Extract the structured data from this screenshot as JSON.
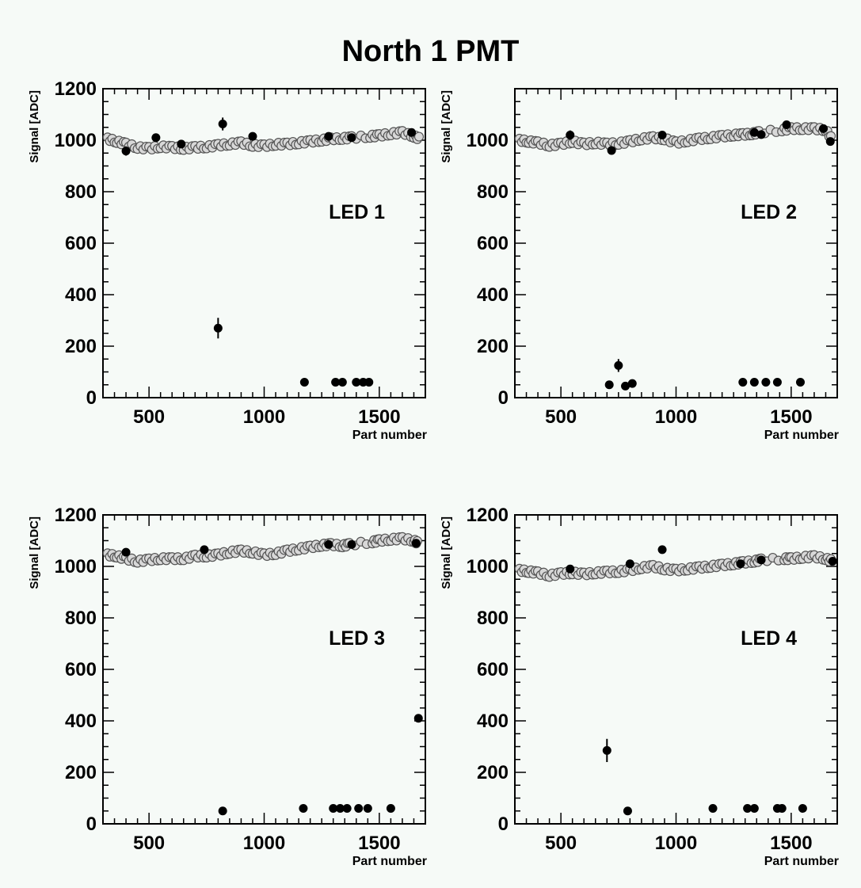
{
  "figure_title": "North 1 PMT",
  "chart_data": [
    {
      "type": "scatter",
      "title": "",
      "xlabel": "Part number",
      "ylabel": "Signal [ADC]",
      "xlim": [
        300,
        1700
      ],
      "ylim": [
        0,
        1200
      ],
      "xticks": [
        500,
        1000,
        1500
      ],
      "yticks": [
        0,
        200,
        400,
        600,
        800,
        1000,
        1200
      ],
      "annotation": "LED 1",
      "grid": false,
      "band": [
        [
          320,
          1005
        ],
        [
          360,
          995
        ],
        [
          400,
          985
        ],
        [
          450,
          972
        ],
        [
          500,
          968
        ],
        [
          550,
          975
        ],
        [
          600,
          972
        ],
        [
          650,
          968
        ],
        [
          700,
          972
        ],
        [
          750,
          974
        ],
        [
          800,
          980
        ],
        [
          850,
          985
        ],
        [
          900,
          990
        ],
        [
          950,
          980
        ],
        [
          1000,
          978
        ],
        [
          1050,
          984
        ],
        [
          1100,
          985
        ],
        [
          1150,
          990
        ],
        [
          1200,
          995
        ],
        [
          1250,
          1000
        ],
        [
          1290,
          1005
        ],
        [
          1340,
          1007
        ],
        [
          1380,
          1010
        ],
        [
          1460,
          1015
        ],
        [
          1500,
          1018
        ],
        [
          1550,
          1025
        ],
        [
          1600,
          1030
        ],
        [
          1650,
          1015
        ],
        [
          1680,
          1005
        ]
      ],
      "points": [
        [
          400,
          958,
          18
        ],
        [
          530,
          1010,
          0
        ],
        [
          640,
          985,
          0
        ],
        [
          820,
          1063,
          25
        ],
        [
          950,
          1015,
          0
        ],
        [
          1280,
          1015,
          0
        ],
        [
          1380,
          1010,
          0
        ],
        [
          1640,
          1030,
          0
        ],
        [
          800,
          270,
          40
        ],
        [
          1175,
          60,
          0
        ],
        [
          1310,
          60,
          0
        ],
        [
          1340,
          60,
          0
        ],
        [
          1400,
          60,
          0
        ],
        [
          1430,
          60,
          0
        ],
        [
          1455,
          60,
          0
        ]
      ]
    },
    {
      "type": "scatter",
      "title": "",
      "xlabel": "Part number",
      "ylabel": "Signal [ADC]",
      "xlim": [
        300,
        1700
      ],
      "ylim": [
        0,
        1200
      ],
      "xticks": [
        500,
        1000,
        1500
      ],
      "yticks": [
        0,
        200,
        400,
        600,
        800,
        1000
      ],
      "annotation": "LED 2",
      "grid": false,
      "band": [
        [
          320,
          1000
        ],
        [
          360,
          995
        ],
        [
          400,
          990
        ],
        [
          450,
          980
        ],
        [
          500,
          985
        ],
        [
          550,
          995
        ],
        [
          600,
          985
        ],
        [
          650,
          990
        ],
        [
          700,
          985
        ],
        [
          750,
          988
        ],
        [
          800,
          995
        ],
        [
          850,
          1005
        ],
        [
          900,
          1010
        ],
        [
          950,
          1005
        ],
        [
          1000,
          990
        ],
        [
          1050,
          998
        ],
        [
          1100,
          1005
        ],
        [
          1150,
          1010
        ],
        [
          1200,
          1015
        ],
        [
          1250,
          1020
        ],
        [
          1290,
          1022
        ],
        [
          1330,
          1025
        ],
        [
          1360,
          1030
        ],
        [
          1460,
          1040
        ],
        [
          1500,
          1045
        ],
        [
          1550,
          1045
        ],
        [
          1600,
          1045
        ],
        [
          1650,
          1040
        ],
        [
          1680,
          1000
        ]
      ],
      "points": [
        [
          540,
          1020,
          18
        ],
        [
          720,
          960,
          15
        ],
        [
          940,
          1020,
          0
        ],
        [
          1340,
          1030,
          0
        ],
        [
          1370,
          1022,
          0
        ],
        [
          1480,
          1060,
          0
        ],
        [
          1640,
          1045,
          0
        ],
        [
          1670,
          995,
          0
        ],
        [
          710,
          50,
          0
        ],
        [
          750,
          125,
          25
        ],
        [
          780,
          45,
          0
        ],
        [
          810,
          55,
          0
        ],
        [
          1290,
          60,
          0
        ],
        [
          1340,
          60,
          0
        ],
        [
          1390,
          60,
          0
        ],
        [
          1440,
          60,
          0
        ],
        [
          1540,
          60,
          0
        ]
      ]
    },
    {
      "type": "scatter",
      "title": "",
      "xlabel": "Part number",
      "ylabel": "Signal [ADC]",
      "xlim": [
        300,
        1700
      ],
      "ylim": [
        0,
        1200
      ],
      "xticks": [
        500,
        1000,
        1500
      ],
      "yticks": [
        0,
        200,
        400,
        600,
        800,
        1000,
        1200
      ],
      "annotation": "LED 3",
      "grid": false,
      "band": [
        [
          320,
          1045
        ],
        [
          360,
          1040
        ],
        [
          400,
          1030
        ],
        [
          450,
          1020
        ],
        [
          500,
          1025
        ],
        [
          550,
          1030
        ],
        [
          600,
          1030
        ],
        [
          650,
          1030
        ],
        [
          700,
          1040
        ],
        [
          750,
          1040
        ],
        [
          800,
          1045
        ],
        [
          850,
          1055
        ],
        [
          900,
          1060
        ],
        [
          950,
          1055
        ],
        [
          1000,
          1045
        ],
        [
          1050,
          1050
        ],
        [
          1100,
          1060
        ],
        [
          1150,
          1068
        ],
        [
          1200,
          1075
        ],
        [
          1250,
          1082
        ],
        [
          1290,
          1085
        ],
        [
          1340,
          1080
        ],
        [
          1370,
          1085
        ],
        [
          1470,
          1095
        ],
        [
          1500,
          1100
        ],
        [
          1550,
          1105
        ],
        [
          1600,
          1108
        ],
        [
          1650,
          1100
        ],
        [
          1670,
          1090
        ]
      ],
      "points": [
        [
          400,
          1055,
          15
        ],
        [
          740,
          1065,
          15
        ],
        [
          1280,
          1085,
          0
        ],
        [
          1380,
          1085,
          0
        ],
        [
          1660,
          1090,
          0
        ],
        [
          1670,
          410,
          0
        ],
        [
          820,
          50,
          0
        ],
        [
          1170,
          60,
          0
        ],
        [
          1300,
          60,
          0
        ],
        [
          1330,
          60,
          0
        ],
        [
          1360,
          60,
          0
        ],
        [
          1410,
          60,
          0
        ],
        [
          1450,
          60,
          0
        ],
        [
          1550,
          60,
          0
        ]
      ]
    },
    {
      "type": "scatter",
      "title": "",
      "xlabel": "Part number",
      "ylabel": "Signal [ADC]",
      "xlim": [
        300,
        1700
      ],
      "ylim": [
        0,
        1200
      ],
      "xticks": [
        500,
        1000,
        1500
      ],
      "yticks": [
        0,
        200,
        400,
        600,
        800,
        1000,
        1200
      ],
      "annotation": "LED 4",
      "grid": false,
      "band": [
        [
          320,
          985
        ],
        [
          360,
          980
        ],
        [
          400,
          975
        ],
        [
          450,
          965
        ],
        [
          500,
          972
        ],
        [
          550,
          975
        ],
        [
          600,
          970
        ],
        [
          650,
          975
        ],
        [
          700,
          978
        ],
        [
          750,
          980
        ],
        [
          800,
          985
        ],
        [
          850,
          995
        ],
        [
          900,
          1000
        ],
        [
          950,
          990
        ],
        [
          1000,
          985
        ],
        [
          1050,
          990
        ],
        [
          1100,
          995
        ],
        [
          1150,
          1000
        ],
        [
          1200,
          1005
        ],
        [
          1250,
          1010
        ],
        [
          1290,
          1015
        ],
        [
          1340,
          1020
        ],
        [
          1370,
          1025
        ],
        [
          1470,
          1030
        ],
        [
          1500,
          1030
        ],
        [
          1550,
          1035
        ],
        [
          1600,
          1038
        ],
        [
          1650,
          1030
        ],
        [
          1680,
          1020
        ]
      ],
      "points": [
        [
          540,
          990,
          0
        ],
        [
          800,
          1010,
          0
        ],
        [
          940,
          1065,
          0
        ],
        [
          1280,
          1010,
          0
        ],
        [
          1370,
          1025,
          0
        ],
        [
          1680,
          1020,
          0
        ],
        [
          700,
          285,
          45
        ],
        [
          790,
          50,
          0
        ],
        [
          1160,
          60,
          0
        ],
        [
          1310,
          60,
          0
        ],
        [
          1340,
          60,
          0
        ],
        [
          1440,
          60,
          0
        ],
        [
          1460,
          60,
          0
        ],
        [
          1550,
          60,
          0
        ]
      ]
    }
  ]
}
